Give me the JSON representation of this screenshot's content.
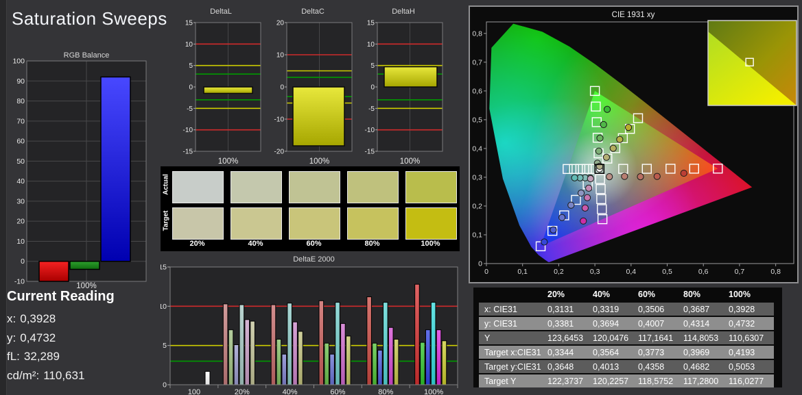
{
  "page": {
    "title": "Saturation Sweeps"
  },
  "colors": {
    "background": "#343437",
    "limit_red": "#cf2b2b",
    "limit_yellow": "#cdcd00",
    "limit_green": "#009a00",
    "bar_yellow_top": "#e8e83c",
    "bar_yellow_bottom": "#a6a600"
  },
  "current_reading": {
    "title": "Current Reading",
    "items": [
      {
        "label": "x:",
        "value": "0,3928"
      },
      {
        "label": "y:",
        "value": "0,4732"
      },
      {
        "label": "fL:",
        "value": "32,289"
      },
      {
        "label": "cd/m²:",
        "value": "110,631"
      }
    ]
  },
  "table": {
    "headers": [
      "",
      "20%",
      "40%",
      "60%",
      "80%",
      "100%"
    ],
    "rows": [
      {
        "label": "x: CIE31",
        "values": [
          "0,3131",
          "0,3319",
          "0,3506",
          "0,3687",
          "0,3928"
        ]
      },
      {
        "label": "y: CIE31",
        "values": [
          "0,3381",
          "0,3694",
          "0,4007",
          "0,4314",
          "0,4732"
        ]
      },
      {
        "label": "Y",
        "values": [
          "123,6453",
          "120,0476",
          "117,1641",
          "114,8053",
          "110,6307"
        ]
      },
      {
        "label": "Target x:CIE31",
        "values": [
          "0,3344",
          "0,3564",
          "0,3773",
          "0,3969",
          "0,4193"
        ]
      },
      {
        "label": "Target y:CIE31",
        "values": [
          "0,3648",
          "0,4013",
          "0,4358",
          "0,4682",
          "0,5053"
        ]
      },
      {
        "label": "Target Y",
        "values": [
          "122,3737",
          "120,2257",
          "118,5752",
          "117,2800",
          "116,0277"
        ]
      }
    ]
  },
  "chart_data": [
    {
      "id": "rgb_balance",
      "type": "bar",
      "title": "RGB Balance",
      "xlabel": "100%",
      "ylim": [
        -10,
        100
      ],
      "ytick_step": 10,
      "series": [
        {
          "name": "Red",
          "value": -10,
          "color_top": "#f52222",
          "color_bottom": "#a80000"
        },
        {
          "name": "Green",
          "value": -4,
          "color_top": "#2da02d",
          "color_bottom": "#0f6b0f"
        },
        {
          "name": "Blue",
          "value": 92,
          "color_top": "#4848ff",
          "color_bottom": "#0000b0"
        }
      ]
    },
    {
      "id": "deltaL",
      "type": "bar",
      "title": "DeltaL",
      "xlabel": "100%",
      "ylim": [
        -15,
        15
      ],
      "yticks": [
        15,
        10,
        5,
        0,
        -5,
        -10,
        -15
      ],
      "value": -1.5,
      "limits": {
        "red": 10,
        "yellow": 5,
        "green": 3
      }
    },
    {
      "id": "deltaC",
      "type": "bar",
      "title": "DeltaC",
      "xlabel": "100%",
      "ylim": [
        -20,
        20
      ],
      "yticks": [
        20,
        10,
        0,
        -10,
        -20
      ],
      "value": -18.3,
      "limits": {
        "red": 10,
        "yellow": 5,
        "green": 3
      }
    },
    {
      "id": "deltaH",
      "type": "bar",
      "title": "DeltaH",
      "xlabel": "100%",
      "ylim": [
        -15,
        15
      ],
      "yticks": [
        15,
        10,
        5,
        0,
        -5,
        -10,
        -15
      ],
      "value": 4.7,
      "limits": {
        "red": 10,
        "yellow": 5,
        "green": 3
      }
    },
    {
      "id": "swatches",
      "type": "table",
      "row_labels": [
        "Actual",
        "Target"
      ],
      "categories": [
        "20%",
        "40%",
        "60%",
        "80%",
        "100%"
      ],
      "actual_colors": [
        "#c8cdc9",
        "#c4c8ad",
        "#c0c394",
        "#bfc17d",
        "#b9bd4c"
      ],
      "target_colors": [
        "#c8c6a9",
        "#cac791",
        "#c9c57a",
        "#c6c25e",
        "#c4bd12"
      ]
    },
    {
      "id": "deltaE2000",
      "type": "bar",
      "title": "DeltaE 2000",
      "ylim": [
        0,
        15
      ],
      "yticks": [
        0,
        5,
        10,
        15
      ],
      "limits": {
        "red": 10,
        "yellow": 5,
        "green": 3
      },
      "groups": [
        {
          "label": "100",
          "values": [
            1.7
          ],
          "colors": [
            "#ffffff"
          ]
        },
        {
          "label": "20%",
          "values": [
            10.3,
            7.0,
            5.1,
            10.2,
            8.3,
            8.1
          ],
          "colors": [
            "#c17b7b",
            "#9cbd7e",
            "#9898cb",
            "#a3c6c0",
            "#c79cc4",
            "#c0c095"
          ]
        },
        {
          "label": "40%",
          "values": [
            10.2,
            5.8,
            3.9,
            10.4,
            8.0,
            6.8
          ],
          "colors": [
            "#c46a69",
            "#7fbc60",
            "#7f82cd",
            "#8cc9c5",
            "#ca84c7",
            "#bfbf7b"
          ]
        },
        {
          "label": "60%",
          "values": [
            10.7,
            5.3,
            3.9,
            10.5,
            7.8,
            6.2
          ],
          "colors": [
            "#c75b58",
            "#68bd4a",
            "#6670d2",
            "#72cecb",
            "#cd68cb",
            "#c1c162"
          ]
        },
        {
          "label": "80%",
          "values": [
            11.2,
            5.3,
            4.4,
            10.5,
            7.3,
            5.8
          ],
          "colors": [
            "#cb4a42",
            "#4fc036",
            "#4c5bd9",
            "#54d4d3",
            "#d348d2",
            "#c4c449"
          ]
        },
        {
          "label": "100%",
          "values": [
            12.8,
            5.4,
            7.0,
            10.5,
            7.0,
            5.6
          ],
          "colors": [
            "#d53030",
            "#2fc32b",
            "#2f42e2",
            "#32dadb",
            "#da2ada",
            "#c9c92e"
          ]
        }
      ]
    },
    {
      "id": "cie",
      "type": "scatter",
      "title": "CIE 1931 xy",
      "xlim": [
        0,
        0.85
      ],
      "ylim": [
        0,
        0.84
      ],
      "xtick_labels": [
        "0",
        "0,1",
        "0,2",
        "0,3",
        "0,4",
        "0,5",
        "0,6",
        "0,7",
        "0,8"
      ],
      "ytick_labels": [
        "0",
        "0,1",
        "0,2",
        "0,3",
        "0,4",
        "0,5",
        "0,6",
        "0,7",
        "0,8"
      ],
      "white_point": [
        0.3127,
        0.329
      ],
      "gamut_triangle": {
        "red": [
          0.64,
          0.33
        ],
        "green": [
          0.3,
          0.6
        ],
        "blue": [
          0.15,
          0.06
        ]
      },
      "locus": [
        [
          0.1741,
          0.005
        ],
        [
          0.1714,
          0.0051
        ],
        [
          0.1644,
          0.0109
        ],
        [
          0.144,
          0.0297
        ],
        [
          0.1241,
          0.0578
        ],
        [
          0.0913,
          0.1327
        ],
        [
          0.0454,
          0.295
        ],
        [
          0.0082,
          0.5384
        ],
        [
          0.0139,
          0.7502
        ],
        [
          0.0743,
          0.8338
        ],
        [
          0.1547,
          0.8059
        ],
        [
          0.2296,
          0.7543
        ],
        [
          0.3016,
          0.6923
        ],
        [
          0.3731,
          0.6245
        ],
        [
          0.4441,
          0.5547
        ],
        [
          0.5125,
          0.4866
        ],
        [
          0.5752,
          0.4242
        ],
        [
          0.627,
          0.3725
        ],
        [
          0.6658,
          0.334
        ],
        [
          0.6915,
          0.3083
        ],
        [
          0.719,
          0.2809
        ],
        [
          0.7347,
          0.2653
        ]
      ],
      "targets": {
        "red": [
          [
            0.3782,
            0.3292
          ],
          [
            0.4436,
            0.3294
          ],
          [
            0.5091,
            0.3296
          ],
          [
            0.5745,
            0.3298
          ],
          [
            0.64,
            0.33
          ]
        ],
        "green": [
          [
            0.3102,
            0.3832
          ],
          [
            0.3076,
            0.4374
          ],
          [
            0.3051,
            0.4916
          ],
          [
            0.3025,
            0.5458
          ],
          [
            0.3,
            0.6
          ]
        ],
        "blue": [
          [
            0.2802,
            0.2752
          ],
          [
            0.2476,
            0.2214
          ],
          [
            0.2151,
            0.1676
          ],
          [
            0.1825,
            0.1138
          ],
          [
            0.15,
            0.06
          ]
        ],
        "cyan": [
          [
            0.2951,
            0.3289
          ],
          [
            0.2775,
            0.3289
          ],
          [
            0.2598,
            0.3288
          ],
          [
            0.2422,
            0.3288
          ],
          [
            0.2246,
            0.3287
          ]
        ],
        "magenta": [
          [
            0.3143,
            0.294
          ],
          [
            0.316,
            0.2591
          ],
          [
            0.3176,
            0.2241
          ],
          [
            0.3193,
            0.1892
          ],
          [
            0.3209,
            0.1542
          ]
        ],
        "yellow": [
          [
            0.3344,
            0.3648
          ],
          [
            0.3564,
            0.4013
          ],
          [
            0.3773,
            0.4358
          ],
          [
            0.3969,
            0.4682
          ],
          [
            0.4193,
            0.5053
          ]
        ]
      },
      "measured": {
        "white": {
          "points": [
            [
              0.3127,
              0.329
            ]
          ],
          "colors": [
            "#ffffff"
          ]
        },
        "red": {
          "points": [
            [
              0.34,
              0.302
            ],
            [
              0.382,
              0.303
            ],
            [
              0.426,
              0.302
            ],
            [
              0.472,
              0.303
            ],
            [
              0.546,
              0.314
            ]
          ],
          "colors": [
            "#b98f85",
            "#b97f72",
            "#ba6f62",
            "#bb5c4e",
            "#bd3f35"
          ]
        },
        "green": {
          "points": [
            [
              0.307,
              0.349
            ],
            [
              0.311,
              0.391
            ],
            [
              0.314,
              0.436
            ],
            [
              0.324,
              0.483
            ],
            [
              0.334,
              0.536
            ]
          ],
          "colors": [
            "#93ad8d",
            "#7fb077",
            "#68b35e",
            "#50b748",
            "#3aba35"
          ]
        },
        "blue": {
          "points": [
            [
              0.262,
              0.245
            ],
            [
              0.234,
              0.203
            ],
            [
              0.209,
              0.16
            ],
            [
              0.185,
              0.117
            ],
            [
              0.16,
              0.075
            ]
          ],
          "colors": [
            "#8e96c2",
            "#7a85c6",
            "#6673cb",
            "#505ed1",
            "#3646d8"
          ]
        },
        "cyan": {
          "points": [
            [
              0.287,
              0.298
            ],
            [
              0.273,
              0.298
            ],
            [
              0.259,
              0.298
            ],
            [
              0.244,
              0.298
            ]
          ],
          "colors": [
            "#98bfbc",
            "#86bdb9",
            "#74bcb7",
            "#62bcb6"
          ]
        },
        "magenta": {
          "points": [
            [
              0.288,
              0.295
            ],
            [
              0.283,
              0.262
            ],
            [
              0.279,
              0.229
            ],
            [
              0.273,
              0.193
            ],
            [
              0.268,
              0.148
            ]
          ],
          "colors": [
            "#c2a0b8",
            "#c48cb4",
            "#c675b0",
            "#c959ab",
            "#cc2ea6"
          ]
        },
        "yellow": {
          "points": [
            [
              0.3131,
              0.3381
            ],
            [
              0.3319,
              0.3694
            ],
            [
              0.3506,
              0.4007
            ],
            [
              0.3687,
              0.4314
            ],
            [
              0.3928,
              0.4732
            ]
          ],
          "colors": [
            "#b3b08b",
            "#b3ae74",
            "#b4ad5e",
            "#b6ae47",
            "#b8ae2e"
          ]
        }
      },
      "inset": {
        "marker": [
          0.47,
          0.49
        ]
      }
    }
  ]
}
